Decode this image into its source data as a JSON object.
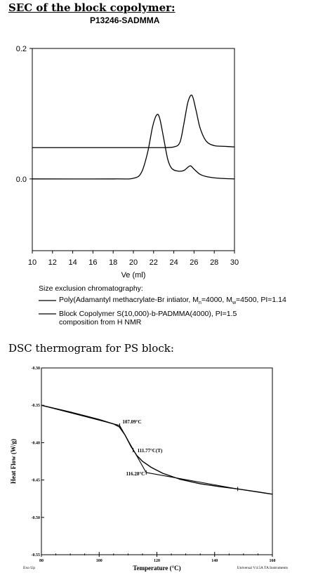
{
  "headings": {
    "sec_title": "SEC of the block copolymer:",
    "sec_subtitle": "P13246-SADMMA",
    "dsc_title": "DSC thermogram for PS block:"
  },
  "chart_data": [
    {
      "type": "line",
      "title": "SEC of the block copolymer:",
      "subtitle": "P13246-SADMMA",
      "xlabel": "Ve (ml)",
      "ylabel": "",
      "xlim": [
        10,
        30
      ],
      "ylim": [
        -0.11,
        0.2
      ],
      "x_ticks": [
        "10",
        "12",
        "14",
        "16",
        "18",
        "20",
        "22",
        "24",
        "26",
        "28",
        "30"
      ],
      "y_ticks": [
        "0.2",
        "0.0"
      ],
      "legend_title": "Size exclusion chromatography:",
      "series": [
        {
          "name": "Poly(Adamantyl methacrylate-Br intiator, M",
          "label_parts": [
            "Poly(Adamantyl methacrylate-Br intiator, M",
            "n",
            "=4000, M",
            "w",
            "=4500, PI=1.14"
          ],
          "x": [
            10,
            20,
            22,
            23,
            24,
            24.6,
            25,
            25.4,
            25.8,
            26.2,
            26.6,
            27.2,
            28,
            29,
            30
          ],
          "values": [
            0.048,
            0.048,
            0.048,
            0.048,
            0.049,
            0.056,
            0.085,
            0.118,
            0.128,
            0.105,
            0.078,
            0.058,
            0.051,
            0.05,
            0.049
          ]
        },
        {
          "name": "Block Copolymer S(10,000)-b-PADMMA(4000),  PI=1.5",
          "label_lines": [
            "Block Copolymer S(10,000)-b-PADMMA(4000),  PI=1.5",
            "composition from H NMR"
          ],
          "x": [
            10,
            18,
            20,
            20.8,
            21.4,
            21.9,
            22.3,
            22.6,
            23,
            23.4,
            23.8,
            24.4,
            25,
            25.6,
            26,
            26.6,
            27.4,
            28.5,
            30
          ],
          "values": [
            0.0,
            0.0,
            0.001,
            0.01,
            0.04,
            0.08,
            0.098,
            0.093,
            0.062,
            0.03,
            0.016,
            0.012,
            0.013,
            0.02,
            0.015,
            0.007,
            0.003,
            0.001,
            0.0
          ]
        }
      ]
    },
    {
      "type": "line",
      "title": "DSC thermogram for PS block:",
      "xlabel": "Temperature (°C)",
      "ylabel": "Heat Flow (W/g)",
      "xlim": [
        80,
        160
      ],
      "ylim": [
        -0.55,
        -0.3
      ],
      "x_ticks": [
        "80",
        "100",
        "120",
        "140",
        "160"
      ],
      "y_ticks": [
        "-0.30",
        "-0.35",
        "-0.40",
        "-0.45",
        "-0.50",
        "-0.55"
      ],
      "footer_left": "Exo Up",
      "footer_right": "Universal V4.5A TA Instruments",
      "annotations": [
        {
          "text": "107.09°C",
          "x": 107.09,
          "y": -0.377
        },
        {
          "text": "111.77°C(T)",
          "x": 111.77,
          "y": -0.41
        },
        {
          "text": "116.28°C",
          "x": 116.28,
          "y": -0.44
        }
      ],
      "series": [
        {
          "name": "heat flow",
          "x": [
            80,
            90,
            100,
            105,
            107,
            109,
            111,
            113,
            115,
            118,
            122,
            128,
            135,
            142,
            148,
            155,
            160
          ],
          "values": [
            -0.35,
            -0.359,
            -0.369,
            -0.375,
            -0.379,
            -0.39,
            -0.405,
            -0.417,
            -0.425,
            -0.433,
            -0.441,
            -0.449,
            -0.455,
            -0.459,
            -0.462,
            -0.466,
            -0.469
          ]
        },
        {
          "name": "onset tangent (glass)",
          "x": [
            80,
            107.09
          ],
          "values": [
            -0.35,
            -0.377
          ]
        },
        {
          "name": "transition tangent",
          "x": [
            107.09,
            116.28
          ],
          "values": [
            -0.377,
            -0.44
          ]
        },
        {
          "name": "rubbery tangent",
          "x": [
            116.28,
            148
          ],
          "values": [
            -0.44,
            -0.462
          ]
        }
      ]
    }
  ]
}
